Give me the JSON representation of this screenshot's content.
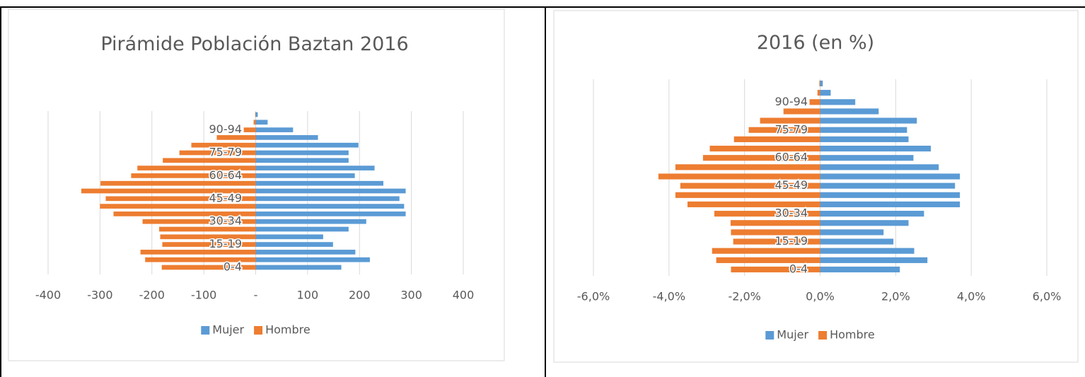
{
  "chart_data": [
    {
      "type": "bar",
      "orientation": "horizontal",
      "title": "Pirámide Población Baztan 2016",
      "categories": [
        "0-4",
        null,
        null,
        "15-19",
        null,
        null,
        "30-34",
        null,
        null,
        "45-49",
        null,
        null,
        "60-64",
        null,
        null,
        "75-79",
        null,
        null,
        "90-94",
        null,
        null
      ],
      "series": [
        {
          "name": "Mujer",
          "color": "#5b9bd5",
          "values": [
            165,
            220,
            192,
            149,
            130,
            179,
            213,
            289,
            286,
            277,
            289,
            246,
            191,
            229,
            179,
            179,
            198,
            120,
            72,
            23,
            4
          ]
        },
        {
          "name": "Hombre",
          "color": "#ed7d31",
          "values": [
            -181,
            -213,
            -222,
            -180,
            -184,
            -186,
            -218,
            -274,
            -300,
            -289,
            -336,
            -299,
            -240,
            -228,
            -179,
            -147,
            -124,
            -75,
            -23,
            -4,
            -1
          ]
        }
      ],
      "xlim": [
        -400,
        400
      ],
      "xticks": [
        -400,
        -300,
        -200,
        -100,
        {
          "value": 0,
          "label": "-"
        },
        100,
        200,
        300,
        400
      ],
      "grid": true,
      "legend": "bottom"
    },
    {
      "type": "bar",
      "orientation": "horizontal",
      "title": "2016 (en %)",
      "categories": [
        "0-4",
        null,
        null,
        "15-19",
        null,
        null,
        "30-34",
        null,
        null,
        "45-49",
        null,
        null,
        "60-64",
        null,
        null,
        "75-79",
        null,
        null,
        "90-94",
        null,
        null
      ],
      "series": [
        {
          "name": "Mujer",
          "color": "#5b9bd5",
          "values": [
            2.11,
            2.84,
            2.49,
            1.94,
            1.68,
            2.34,
            2.75,
            3.7,
            3.7,
            3.57,
            3.7,
            3.14,
            2.47,
            2.93,
            2.34,
            2.3,
            2.56,
            1.55,
            0.93,
            0.28,
            0.07
          ]
        },
        {
          "name": "Hombre",
          "color": "#ed7d31",
          "values": [
            -2.36,
            -2.75,
            -2.86,
            -2.3,
            -2.36,
            -2.37,
            -2.8,
            -3.51,
            -3.83,
            -3.7,
            -4.28,
            -3.83,
            -3.1,
            -2.92,
            -2.28,
            -1.89,
            -1.59,
            -0.97,
            -0.28,
            -0.07,
            -0.02
          ]
        }
      ],
      "xlim": [
        -6,
        6
      ],
      "xticks": [
        {
          "value": -6,
          "label": "-6,0%"
        },
        {
          "value": -4,
          "label": "-4,0%"
        },
        {
          "value": -2,
          "label": "-2,0%"
        },
        {
          "value": 0,
          "label": "0,0%"
        },
        {
          "value": 2,
          "label": "2,0%"
        },
        {
          "value": 4,
          "label": "4,0%"
        },
        {
          "value": 6,
          "label": "6,0%"
        }
      ],
      "grid": true,
      "legend": "bottom"
    }
  ]
}
